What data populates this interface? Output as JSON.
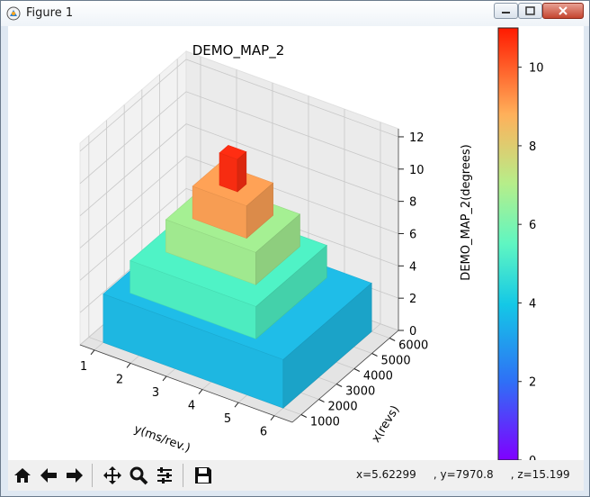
{
  "window": {
    "title": "Figure 1"
  },
  "status": {
    "text": "x=5.62299     , y=7970.8     , z=15.199"
  },
  "toolbar": {
    "buttons": [
      "home-icon",
      "back-icon",
      "forward-icon",
      "pan-icon",
      "zoom-icon",
      "configure-subplots-icon",
      "save-icon"
    ]
  },
  "chart_data": {
    "type": "surface3d",
    "title": "DEMO_MAP_2",
    "xlabel": "x(revs)",
    "ylabel": "y(ms/rev.)",
    "zlabel": "DEMO_MAP_2(degrees)",
    "x_ticks": [
      "1000",
      "2000",
      "3000",
      "4000",
      "5000",
      "6000"
    ],
    "y_ticks": [
      "1",
      "2",
      "3",
      "4",
      "5",
      "6"
    ],
    "z_ticks": [
      "0",
      "2",
      "4",
      "6",
      "8",
      "10",
      "12"
    ],
    "xlim": [
      500,
      6500
    ],
    "ylim": [
      0.6,
      6.5
    ],
    "zlim": [
      0,
      12.5
    ],
    "colormap": "rainbow",
    "colorbar": {
      "range": [
        0,
        11
      ],
      "ticks": [
        "0",
        "2",
        "4",
        "6",
        "8",
        "10"
      ]
    },
    "levels": [
      {
        "z": 3,
        "y_range": [
          1,
          6
        ],
        "x_range": [
          1000,
          6000
        ],
        "color": "#1fbde8"
      },
      {
        "z": 5,
        "y_range": [
          1.5,
          5
        ],
        "x_range": [
          1500,
          5500
        ],
        "color": "#4ff3c6"
      },
      {
        "z": 7,
        "y_range": [
          2,
          4.5
        ],
        "x_range": [
          2500,
          5000
        ],
        "color": "#a5f093"
      },
      {
        "z": 9,
        "y_range": [
          2.5,
          4
        ],
        "x_range": [
          3000,
          4500
        ],
        "color": "#ffa256"
      },
      {
        "z": 11,
        "y_range": [
          3,
          3.5
        ],
        "x_range": [
          3500,
          4000
        ],
        "color": "#ff2d12"
      }
    ]
  }
}
